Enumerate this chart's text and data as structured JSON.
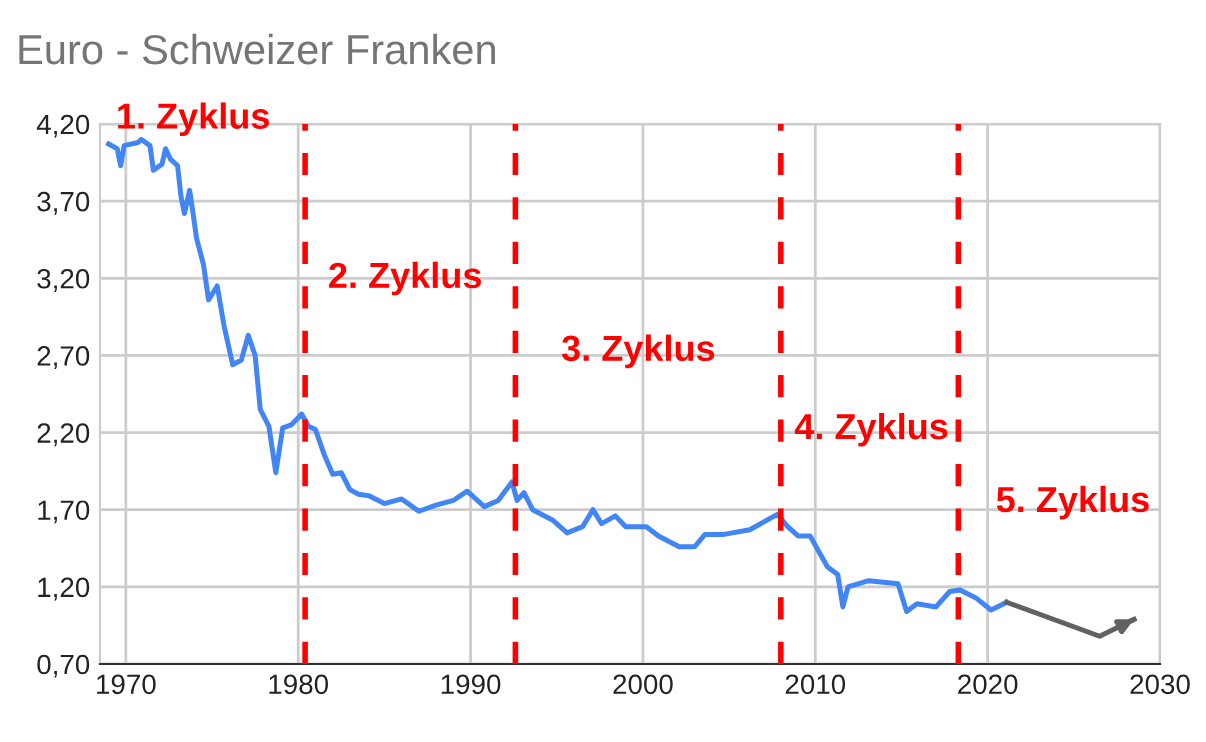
{
  "chart_data": {
    "type": "line",
    "title": "Euro - Schweizer Franken",
    "series": [
      {
        "color": "#4285f4",
        "x": [
          1969.0,
          1969.5,
          1969.7,
          1969.9,
          1970.7,
          1970.9,
          1971.4,
          1971.6,
          1972.1,
          1972.3,
          1972.6,
          1973.0,
          1973.2,
          1973.4,
          1973.7,
          1973.9,
          1974.1,
          1974.5,
          1974.8,
          1975.3,
          1975.7,
          1976.2,
          1976.7,
          1977.1,
          1977.5,
          1977.8,
          1978.3,
          1978.7,
          1979.1,
          1979.6,
          1980.2,
          1980.6,
          1981.0,
          1981.5,
          1982.0,
          1982.5,
          1983.0,
          1983.5,
          1984.1,
          1985.0,
          1986.0,
          1987.0,
          1988.0,
          1989.0,
          1989.8,
          1990.8,
          1991.6,
          1992.4,
          1992.7,
          1993.1,
          1993.6,
          1994.8,
          1995.6,
          1996.5,
          1997.1,
          1997.6,
          1998.4,
          1999.0,
          2000.2,
          2000.9,
          2002.1,
          2003.0,
          2003.6,
          2004.7,
          2006.2,
          2007.8,
          2008.4,
          2009.0,
          2009.7,
          2010.7,
          2011.3,
          2011.6,
          2011.9,
          2013.1,
          2014.8,
          2015.3,
          2015.9,
          2017.0,
          2017.8,
          2018.4,
          2019.3,
          2020.2,
          2021.1
        ],
        "values": [
          4.07,
          4.04,
          3.93,
          4.06,
          4.08,
          4.1,
          4.06,
          3.9,
          3.94,
          4.04,
          3.97,
          3.93,
          3.73,
          3.62,
          3.77,
          3.62,
          3.46,
          3.29,
          3.06,
          3.15,
          2.89,
          2.64,
          2.67,
          2.83,
          2.7,
          2.35,
          2.24,
          1.94,
          2.23,
          2.25,
          2.32,
          2.24,
          2.22,
          2.06,
          1.93,
          1.94,
          1.83,
          1.8,
          1.79,
          1.74,
          1.77,
          1.69,
          1.73,
          1.76,
          1.82,
          1.72,
          1.76,
          1.88,
          1.76,
          1.81,
          1.7,
          1.63,
          1.55,
          1.59,
          1.7,
          1.61,
          1.66,
          1.59,
          1.59,
          1.53,
          1.46,
          1.46,
          1.54,
          1.54,
          1.57,
          1.67,
          1.59,
          1.53,
          1.53,
          1.33,
          1.28,
          1.07,
          1.2,
          1.24,
          1.22,
          1.04,
          1.09,
          1.07,
          1.17,
          1.18,
          1.13,
          1.05,
          1.1
        ]
      },
      {
        "color": "#616161",
        "x": [
          2021.1,
          2026.5,
          2028.5
        ],
        "values": [
          1.1,
          0.88,
          0.99
        ]
      }
    ],
    "xlim": [
      1968.5,
      2030
    ],
    "xticks": [
      1970,
      1980,
      1990,
      2000,
      2010,
      2020,
      2030
    ],
    "ylim": [
      0.7,
      4.2
    ],
    "yticks": [
      {
        "value": 0.7,
        "label": "0,70"
      },
      {
        "value": 1.2,
        "label": "1,20"
      },
      {
        "value": 1.7,
        "label": "1,70"
      },
      {
        "value": 2.2,
        "label": "2,20"
      },
      {
        "value": 2.7,
        "label": "2,70"
      },
      {
        "value": 3.2,
        "label": "3,20"
      },
      {
        "value": 3.7,
        "label": "3,70"
      },
      {
        "value": 4.2,
        "label": "4,20"
      }
    ],
    "grid": true,
    "ref_lines": [
      {
        "axis": "x",
        "value": 1980.4,
        "color": "#ff0000",
        "line_style": "dashed"
      },
      {
        "axis": "x",
        "value": 1992.6,
        "color": "#ff0000",
        "line_style": "dashed"
      },
      {
        "axis": "x",
        "value": 2008.0,
        "color": "#ff0000",
        "line_style": "dashed"
      },
      {
        "axis": "x",
        "value": 2018.3,
        "color": "#ff0000",
        "line_style": "dashed"
      }
    ],
    "annotations": [
      "1. Zyklus",
      "2. Zyklus",
      "3. Zyklus",
      "4. Zyklus",
      "5. Zyklus"
    ]
  }
}
